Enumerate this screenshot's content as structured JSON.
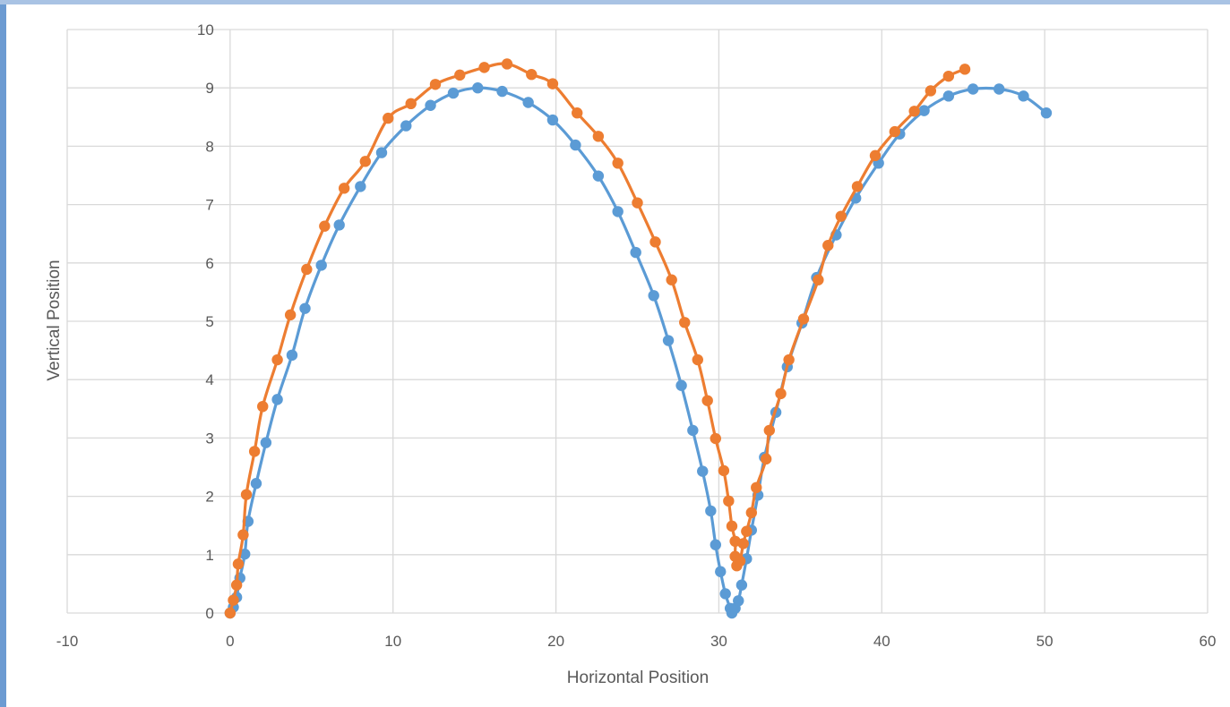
{
  "chart_data": {
    "type": "scatter",
    "title": "",
    "xlabel": "Horizontal Position",
    "ylabel": "Vertical Position",
    "xlim": [
      -10,
      60
    ],
    "ylim": [
      0,
      10
    ],
    "x_ticks": [
      -10,
      0,
      10,
      20,
      30,
      40,
      50,
      60
    ],
    "y_ticks": [
      0,
      1,
      2,
      3,
      4,
      5,
      6,
      7,
      8,
      9,
      10
    ],
    "x_tick_labels": [
      "-10",
      "0",
      "10",
      "20",
      "30",
      "40",
      "50",
      "60"
    ],
    "y_tick_labels": [
      "0",
      "1",
      "2",
      "3",
      "4",
      "5",
      "6",
      "7",
      "8",
      "9",
      "10"
    ],
    "grid": true,
    "legend": "none",
    "markers": true,
    "smooth_lines": true,
    "series": [
      {
        "color": "#5b9bd5",
        "points": [
          [
            0.0,
            0.0
          ],
          [
            0.2,
            0.1
          ],
          [
            0.4,
            0.27
          ],
          [
            0.6,
            0.6
          ],
          [
            0.9,
            1.01
          ],
          [
            1.1,
            1.57
          ],
          [
            1.6,
            2.22
          ],
          [
            2.2,
            2.92
          ],
          [
            2.9,
            3.66
          ],
          [
            3.8,
            4.42
          ],
          [
            4.6,
            5.22
          ],
          [
            5.6,
            5.96
          ],
          [
            6.7,
            6.65
          ],
          [
            8.0,
            7.31
          ],
          [
            9.3,
            7.89
          ],
          [
            10.8,
            8.35
          ],
          [
            12.3,
            8.7
          ],
          [
            13.7,
            8.91
          ],
          [
            15.2,
            9.0
          ],
          [
            16.7,
            8.94
          ],
          [
            18.3,
            8.75
          ],
          [
            19.8,
            8.45
          ],
          [
            21.2,
            8.02
          ],
          [
            22.6,
            7.49
          ],
          [
            23.8,
            6.88
          ],
          [
            24.9,
            6.18
          ],
          [
            26.0,
            5.44
          ],
          [
            26.9,
            4.67
          ],
          [
            27.7,
            3.9
          ],
          [
            28.4,
            3.13
          ],
          [
            29.0,
            2.43
          ],
          [
            29.5,
            1.75
          ],
          [
            29.8,
            1.17
          ],
          [
            30.1,
            0.71
          ],
          [
            30.4,
            0.33
          ],
          [
            30.7,
            0.08
          ],
          [
            30.8,
            0.0
          ],
          [
            31.0,
            0.08
          ],
          [
            31.2,
            0.21
          ],
          [
            31.4,
            0.48
          ],
          [
            31.7,
            0.93
          ],
          [
            32.0,
            1.42
          ],
          [
            32.4,
            2.02
          ],
          [
            32.8,
            2.67
          ],
          [
            33.5,
            3.44
          ],
          [
            34.2,
            4.22
          ],
          [
            35.1,
            4.97
          ],
          [
            36.0,
            5.75
          ],
          [
            37.2,
            6.48
          ],
          [
            38.4,
            7.11
          ],
          [
            39.8,
            7.71
          ],
          [
            41.1,
            8.21
          ],
          [
            42.6,
            8.61
          ],
          [
            44.1,
            8.86
          ],
          [
            45.6,
            8.98
          ],
          [
            47.2,
            8.98
          ],
          [
            48.7,
            8.86
          ],
          [
            50.1,
            8.57
          ]
        ]
      },
      {
        "color": "#ed7d31",
        "points": [
          [
            0.0,
            0.0
          ],
          [
            0.2,
            0.22
          ],
          [
            0.4,
            0.48
          ],
          [
            0.5,
            0.84
          ],
          [
            0.8,
            1.34
          ],
          [
            1.0,
            2.03
          ],
          [
            1.5,
            2.77
          ],
          [
            2.0,
            3.54
          ],
          [
            2.9,
            4.34
          ],
          [
            3.7,
            5.11
          ],
          [
            4.7,
            5.89
          ],
          [
            5.8,
            6.63
          ],
          [
            7.0,
            7.28
          ],
          [
            8.3,
            7.74
          ],
          [
            9.7,
            8.48
          ],
          [
            11.1,
            8.73
          ],
          [
            12.6,
            9.06
          ],
          [
            14.1,
            9.22
          ],
          [
            15.6,
            9.35
          ],
          [
            17.0,
            9.41
          ],
          [
            18.5,
            9.23
          ],
          [
            19.8,
            9.07
          ],
          [
            21.3,
            8.57
          ],
          [
            22.6,
            8.17
          ],
          [
            23.8,
            7.71
          ],
          [
            25.0,
            7.03
          ],
          [
            26.1,
            6.36
          ],
          [
            27.1,
            5.71
          ],
          [
            27.9,
            4.98
          ],
          [
            28.7,
            4.34
          ],
          [
            29.3,
            3.64
          ],
          [
            29.8,
            2.99
          ],
          [
            30.3,
            2.44
          ],
          [
            30.6,
            1.92
          ],
          [
            30.8,
            1.49
          ],
          [
            31.0,
            1.23
          ],
          [
            31.0,
            0.97
          ],
          [
            31.1,
            0.81
          ],
          [
            31.3,
            0.89
          ],
          [
            31.5,
            1.19
          ],
          [
            31.7,
            1.4
          ],
          [
            32.0,
            1.72
          ],
          [
            32.3,
            2.15
          ],
          [
            32.9,
            2.64
          ],
          [
            33.1,
            3.13
          ],
          [
            33.8,
            3.76
          ],
          [
            34.3,
            4.34
          ],
          [
            35.2,
            5.04
          ],
          [
            36.1,
            5.71
          ],
          [
            36.7,
            6.3
          ],
          [
            37.5,
            6.8
          ],
          [
            38.5,
            7.31
          ],
          [
            39.6,
            7.84
          ],
          [
            40.8,
            8.25
          ],
          [
            42.0,
            8.6
          ],
          [
            43.0,
            8.95
          ],
          [
            44.1,
            9.2
          ],
          [
            45.1,
            9.32
          ]
        ]
      }
    ]
  }
}
